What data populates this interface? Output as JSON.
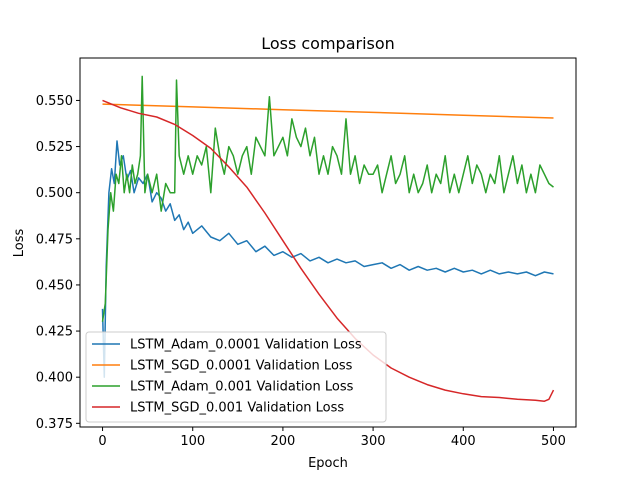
{
  "chart_data": {
    "type": "line",
    "title": "Loss comparison",
    "xlabel": "Epoch",
    "ylabel": "Loss",
    "xlim": [
      -25,
      525
    ],
    "ylim": [
      0.373,
      0.573
    ],
    "xticks": [
      0,
      100,
      200,
      300,
      400,
      500
    ],
    "yticks": [
      0.375,
      0.4,
      0.425,
      0.45,
      0.475,
      0.5,
      0.525,
      0.55
    ],
    "ytick_labels": [
      "0.375",
      "0.400",
      "0.425",
      "0.450",
      "0.475",
      "0.500",
      "0.525",
      "0.550"
    ],
    "grid": false,
    "legend_position": "lower-left",
    "series": [
      {
        "name": "LSTM_Adam_0.0001 Validation Loss",
        "color": "#1f77b4",
        "points": [
          [
            0,
            0.437
          ],
          [
            2,
            0.4
          ],
          [
            4,
            0.46
          ],
          [
            7,
            0.5
          ],
          [
            10,
            0.513
          ],
          [
            13,
            0.505
          ],
          [
            16,
            0.528
          ],
          [
            19,
            0.515
          ],
          [
            23,
            0.52
          ],
          [
            27,
            0.507
          ],
          [
            31,
            0.512
          ],
          [
            35,
            0.5
          ],
          [
            40,
            0.508
          ],
          [
            45,
            0.505
          ],
          [
            50,
            0.51
          ],
          [
            55,
            0.495
          ],
          [
            60,
            0.5
          ],
          [
            65,
            0.497
          ],
          [
            70,
            0.49
          ],
          [
            75,
            0.494
          ],
          [
            80,
            0.485
          ],
          [
            85,
            0.488
          ],
          [
            90,
            0.48
          ],
          [
            95,
            0.484
          ],
          [
            100,
            0.478
          ],
          [
            110,
            0.482
          ],
          [
            120,
            0.476
          ],
          [
            130,
            0.474
          ],
          [
            140,
            0.478
          ],
          [
            150,
            0.472
          ],
          [
            160,
            0.474
          ],
          [
            170,
            0.468
          ],
          [
            180,
            0.471
          ],
          [
            190,
            0.466
          ],
          [
            200,
            0.468
          ],
          [
            210,
            0.465
          ],
          [
            220,
            0.467
          ],
          [
            230,
            0.463
          ],
          [
            240,
            0.465
          ],
          [
            250,
            0.462
          ],
          [
            260,
            0.464
          ],
          [
            270,
            0.462
          ],
          [
            280,
            0.463
          ],
          [
            290,
            0.46
          ],
          [
            300,
            0.461
          ],
          [
            310,
            0.462
          ],
          [
            320,
            0.459
          ],
          [
            330,
            0.461
          ],
          [
            340,
            0.458
          ],
          [
            350,
            0.46
          ],
          [
            360,
            0.458
          ],
          [
            370,
            0.459
          ],
          [
            380,
            0.457
          ],
          [
            390,
            0.459
          ],
          [
            400,
            0.457
          ],
          [
            410,
            0.458
          ],
          [
            420,
            0.456
          ],
          [
            430,
            0.458
          ],
          [
            440,
            0.456
          ],
          [
            450,
            0.457
          ],
          [
            460,
            0.456
          ],
          [
            470,
            0.457
          ],
          [
            480,
            0.455
          ],
          [
            490,
            0.457
          ],
          [
            500,
            0.456
          ]
        ]
      },
      {
        "name": "LSTM_SGD_0.0001 Validation Loss",
        "color": "#ff7f0e",
        "points": [
          [
            0,
            0.548
          ],
          [
            100,
            0.5465
          ],
          [
            200,
            0.545
          ],
          [
            300,
            0.5435
          ],
          [
            400,
            0.542
          ],
          [
            500,
            0.5405
          ]
        ]
      },
      {
        "name": "LSTM_Adam_0.001 Validation Loss",
        "color": "#2ca02c",
        "points": [
          [
            0,
            0.43
          ],
          [
            3,
            0.44
          ],
          [
            6,
            0.48
          ],
          [
            9,
            0.5
          ],
          [
            12,
            0.49
          ],
          [
            15,
            0.51
          ],
          [
            18,
            0.505
          ],
          [
            21,
            0.52
          ],
          [
            24,
            0.5
          ],
          [
            27,
            0.51
          ],
          [
            30,
            0.5
          ],
          [
            33,
            0.515
          ],
          [
            36,
            0.505
          ],
          [
            39,
            0.51
          ],
          [
            42,
            0.52
          ],
          [
            44,
            0.563
          ],
          [
            47,
            0.5
          ],
          [
            50,
            0.51
          ],
          [
            55,
            0.5
          ],
          [
            60,
            0.51
          ],
          [
            65,
            0.49
          ],
          [
            70,
            0.505
          ],
          [
            75,
            0.5
          ],
          [
            80,
            0.5
          ],
          [
            82,
            0.561
          ],
          [
            85,
            0.52
          ],
          [
            90,
            0.51
          ],
          [
            95,
            0.52
          ],
          [
            100,
            0.51
          ],
          [
            105,
            0.52
          ],
          [
            110,
            0.515
          ],
          [
            115,
            0.525
          ],
          [
            120,
            0.5
          ],
          [
            125,
            0.535
          ],
          [
            130,
            0.52
          ],
          [
            135,
            0.51
          ],
          [
            140,
            0.525
          ],
          [
            145,
            0.52
          ],
          [
            150,
            0.51
          ],
          [
            155,
            0.52
          ],
          [
            160,
            0.525
          ],
          [
            165,
            0.51
          ],
          [
            170,
            0.53
          ],
          [
            175,
            0.525
          ],
          [
            180,
            0.52
          ],
          [
            185,
            0.552
          ],
          [
            190,
            0.52
          ],
          [
            195,
            0.525
          ],
          [
            200,
            0.53
          ],
          [
            205,
            0.52
          ],
          [
            210,
            0.54
          ],
          [
            215,
            0.53
          ],
          [
            220,
            0.525
          ],
          [
            225,
            0.535
          ],
          [
            230,
            0.52
          ],
          [
            235,
            0.53
          ],
          [
            240,
            0.51
          ],
          [
            245,
            0.52
          ],
          [
            250,
            0.51
          ],
          [
            255,
            0.525
          ],
          [
            260,
            0.52
          ],
          [
            265,
            0.51
          ],
          [
            270,
            0.54
          ],
          [
            275,
            0.51
          ],
          [
            280,
            0.52
          ],
          [
            285,
            0.505
          ],
          [
            290,
            0.515
          ],
          [
            295,
            0.51
          ],
          [
            300,
            0.51
          ],
          [
            305,
            0.515
          ],
          [
            310,
            0.5
          ],
          [
            315,
            0.51
          ],
          [
            320,
            0.52
          ],
          [
            325,
            0.505
          ],
          [
            330,
            0.51
          ],
          [
            335,
            0.52
          ],
          [
            340,
            0.5
          ],
          [
            345,
            0.51
          ],
          [
            350,
            0.5
          ],
          [
            355,
            0.505
          ],
          [
            360,
            0.515
          ],
          [
            365,
            0.5
          ],
          [
            370,
            0.51
          ],
          [
            375,
            0.505
          ],
          [
            380,
            0.52
          ],
          [
            385,
            0.5
          ],
          [
            390,
            0.51
          ],
          [
            395,
            0.5
          ],
          [
            400,
            0.51
          ],
          [
            405,
            0.52
          ],
          [
            410,
            0.505
          ],
          [
            415,
            0.515
          ],
          [
            420,
            0.51
          ],
          [
            425,
            0.5
          ],
          [
            430,
            0.51
          ],
          [
            435,
            0.505
          ],
          [
            440,
            0.52
          ],
          [
            445,
            0.5
          ],
          [
            450,
            0.51
          ],
          [
            455,
            0.52
          ],
          [
            460,
            0.505
          ],
          [
            465,
            0.515
          ],
          [
            470,
            0.5
          ],
          [
            475,
            0.51
          ],
          [
            480,
            0.5
          ],
          [
            485,
            0.515
          ],
          [
            490,
            0.51
          ],
          [
            495,
            0.505
          ],
          [
            500,
            0.503
          ]
        ]
      },
      {
        "name": "LSTM_SGD_0.001 Validation Loss",
        "color": "#d62728",
        "points": [
          [
            0,
            0.55
          ],
          [
            20,
            0.546
          ],
          [
            40,
            0.543
          ],
          [
            60,
            0.541
          ],
          [
            80,
            0.537
          ],
          [
            100,
            0.531
          ],
          [
            120,
            0.524
          ],
          [
            140,
            0.514
          ],
          [
            160,
            0.503
          ],
          [
            180,
            0.489
          ],
          [
            200,
            0.474
          ],
          [
            220,
            0.459
          ],
          [
            240,
            0.445
          ],
          [
            260,
            0.432
          ],
          [
            280,
            0.421
          ],
          [
            300,
            0.412
          ],
          [
            320,
            0.405
          ],
          [
            340,
            0.4
          ],
          [
            360,
            0.396
          ],
          [
            380,
            0.393
          ],
          [
            400,
            0.391
          ],
          [
            420,
            0.3895
          ],
          [
            440,
            0.389
          ],
          [
            460,
            0.388
          ],
          [
            480,
            0.3875
          ],
          [
            490,
            0.387
          ],
          [
            495,
            0.388
          ],
          [
            500,
            0.393
          ]
        ]
      }
    ]
  }
}
